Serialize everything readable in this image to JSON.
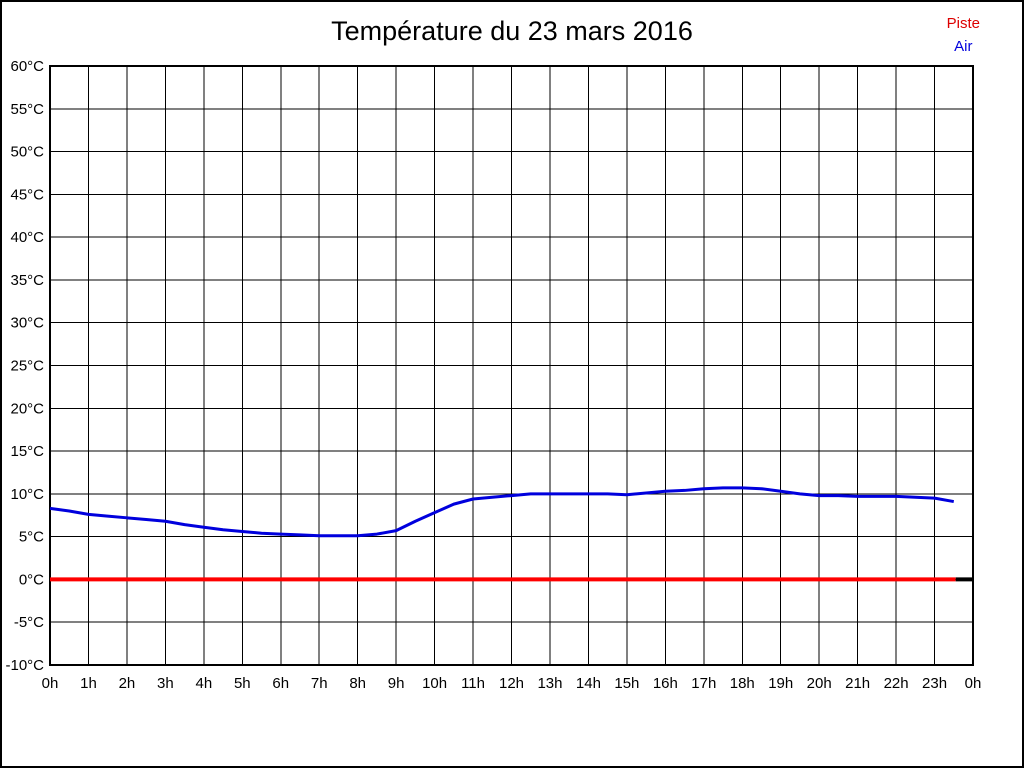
{
  "title": "Température du 23 mars 2016",
  "legend": {
    "piste_label": "Piste",
    "piste_color": "#dd0000",
    "air_label": "Air",
    "air_color": "#0000dd"
  },
  "chart_data": {
    "type": "line",
    "title": "Température du 23 mars 2016",
    "xlabel": "",
    "ylabel": "",
    "xlim": [
      0,
      24
    ],
    "ylim": [
      -10,
      60
    ],
    "grid": true,
    "legend_position": "top-right",
    "x_tick_hours": [
      0,
      1,
      2,
      3,
      4,
      5,
      6,
      7,
      8,
      9,
      10,
      11,
      12,
      13,
      14,
      15,
      16,
      17,
      18,
      19,
      20,
      21,
      22,
      23,
      24
    ],
    "x_tick_labels": [
      "0h",
      "1h",
      "2h",
      "3h",
      "4h",
      "5h",
      "6h",
      "7h",
      "8h",
      "9h",
      "10h",
      "11h",
      "12h",
      "13h",
      "14h",
      "15h",
      "16h",
      "17h",
      "18h",
      "19h",
      "20h",
      "21h",
      "22h",
      "23h",
      "0h"
    ],
    "y_tick_values": [
      -10,
      -5,
      0,
      5,
      10,
      15,
      20,
      25,
      30,
      35,
      40,
      45,
      50,
      55,
      60
    ],
    "y_tick_labels": [
      "-10°C",
      "-5°C",
      "0°C",
      "5°C",
      "10°C",
      "15°C",
      "20°C",
      "25°C",
      "30°C",
      "35°C",
      "40°C",
      "45°C",
      "50°C",
      "55°C",
      "60°C"
    ],
    "series": [
      {
        "name": "Piste",
        "color": "#ff0000",
        "width": 4,
        "x": [
          0,
          23.55
        ],
        "values": [
          0,
          0
        ]
      },
      {
        "name": "",
        "color": "#000000",
        "width": 4,
        "x": [
          23.55,
          24
        ],
        "values": [
          0,
          0
        ]
      },
      {
        "name": "Air",
        "color": "#0000dd",
        "width": 3,
        "x": [
          0,
          0.5,
          1,
          1.5,
          2,
          2.5,
          3,
          3.5,
          4,
          4.5,
          5,
          5.5,
          6,
          6.5,
          7,
          7.5,
          8,
          8.5,
          9,
          9.5,
          10,
          10.5,
          11,
          11.5,
          12,
          12.5,
          13,
          13.5,
          14,
          14.5,
          15,
          15.5,
          16,
          16.5,
          17,
          17.5,
          18,
          18.5,
          19,
          19.5,
          20,
          20.5,
          21,
          21.5,
          22,
          22.5,
          23,
          23.5
        ],
        "values": [
          8.3,
          8.0,
          7.6,
          7.4,
          7.2,
          7.0,
          6.8,
          6.4,
          6.1,
          5.8,
          5.6,
          5.4,
          5.3,
          5.2,
          5.1,
          5.1,
          5.1,
          5.3,
          5.7,
          6.8,
          7.8,
          8.8,
          9.4,
          9.6,
          9.8,
          10.0,
          10.0,
          10.0,
          10.0,
          10.0,
          9.9,
          10.1,
          10.3,
          10.4,
          10.6,
          10.7,
          10.7,
          10.6,
          10.3,
          10.0,
          9.8,
          9.8,
          9.7,
          9.7,
          9.7,
          9.6,
          9.5,
          9.1
        ]
      }
    ]
  }
}
